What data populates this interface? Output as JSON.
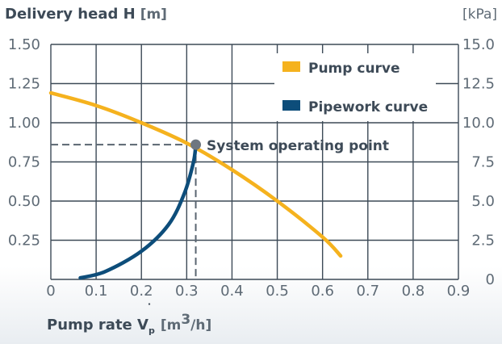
{
  "chart_data": {
    "type": "line",
    "y_title": {
      "bold": "Delivery head H",
      "unit": "[m]"
    },
    "y2_title": "[kPa]",
    "x_title": {
      "bold": "Pump rate V",
      "sub": "p",
      "unit_pre": "[m",
      "unit_sup": "3",
      "unit_post": "/h]"
    },
    "xlim": [
      0,
      0.9
    ],
    "ylim": [
      0,
      1.5
    ],
    "x_ticks": [
      "0",
      "0.1",
      "0.2",
      "0.3",
      "0.4",
      "0.5",
      "0.6",
      "0.7",
      "0.8",
      "0.9"
    ],
    "y_ticks_left": [
      "",
      "0.25",
      "0.50",
      "0.75",
      "1.00",
      "1.25",
      "1.50"
    ],
    "y_ticks_right": [
      "0",
      "2.5",
      "5.0",
      "7.5",
      "10.0",
      "12.5",
      "15.0"
    ],
    "grid": true,
    "legend_position": "top-right",
    "series": [
      {
        "name": "Pump curve",
        "color": "#f5b21e",
        "points": [
          [
            0,
            1.19
          ],
          [
            0.1,
            1.11
          ],
          [
            0.2,
            1.0
          ],
          [
            0.3,
            0.87
          ],
          [
            0.4,
            0.7
          ],
          [
            0.5,
            0.5
          ],
          [
            0.6,
            0.27
          ],
          [
            0.64,
            0.15
          ]
        ]
      },
      {
        "name": "Pipework curve",
        "color": "#0d4d7a",
        "points": [
          [
            0.065,
            0.01
          ],
          [
            0.12,
            0.05
          ],
          [
            0.2,
            0.18
          ],
          [
            0.26,
            0.35
          ],
          [
            0.295,
            0.55
          ],
          [
            0.315,
            0.75
          ],
          [
            0.32,
            0.86
          ]
        ]
      }
    ],
    "operating_point": {
      "label": "System operating point",
      "x": 0.32,
      "y": 0.86,
      "color": "#6e7780"
    }
  }
}
